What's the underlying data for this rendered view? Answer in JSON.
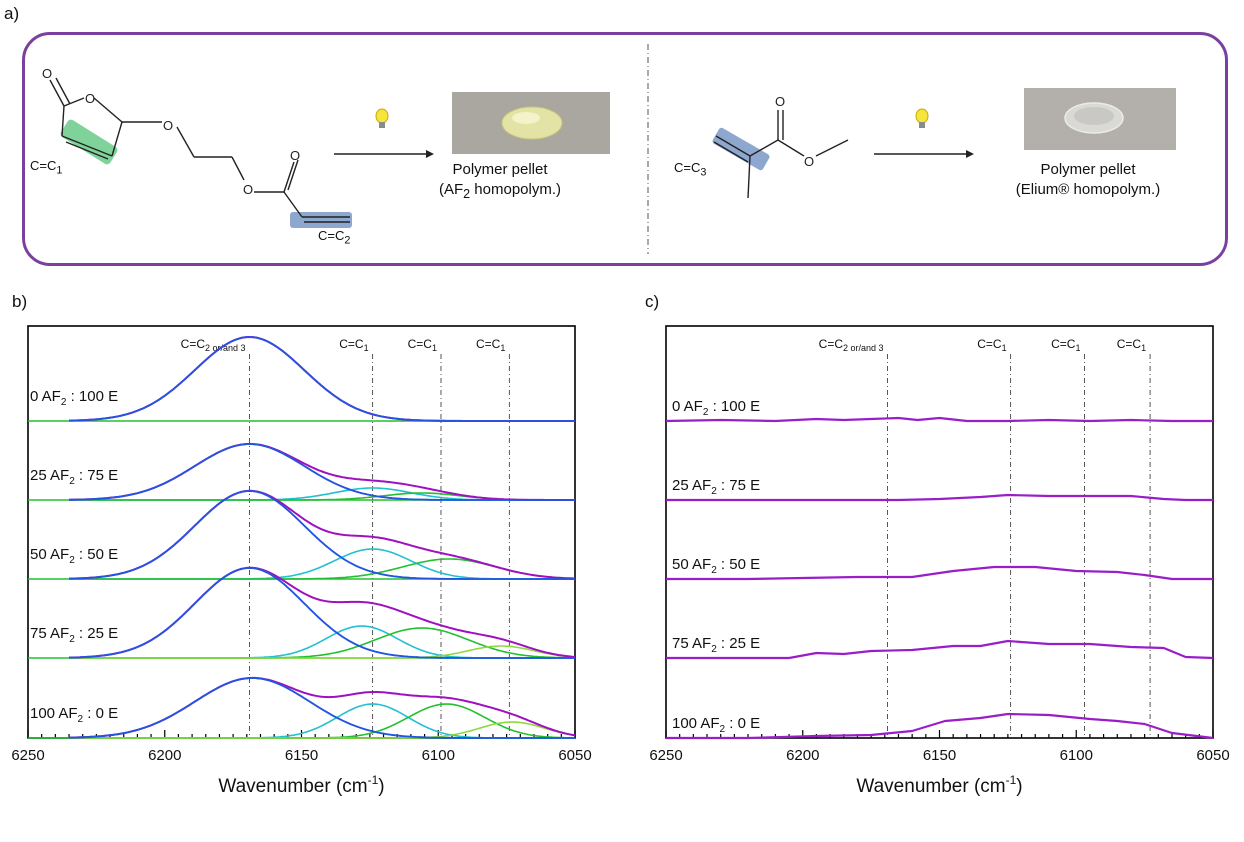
{
  "panel_labels": {
    "a": "a)",
    "b": "b)",
    "c": "c)"
  },
  "scheme": {
    "left": {
      "label_c1": "C=C",
      "label_c1_sub": "1",
      "label_c2": "C=C",
      "label_c2_sub": "2",
      "pellet_caption_line1": "Polymer pellet",
      "pellet_caption_line2_pre": "(AF",
      "pellet_caption_line2_sub": "2",
      "pellet_caption_line2_post": " homopolym.)",
      "highlight_c1_color": "#7fd39a",
      "highlight_c2_color": "#8ea7cf"
    },
    "right": {
      "label_c3": "C=C",
      "label_c3_sub": "3",
      "pellet_caption_line1": "Polymer pellet",
      "pellet_caption_line2": "(Elium® homopolym.)",
      "highlight_c3_color": "#8ea7cf"
    },
    "box_color": "#7b3fa0"
  },
  "chart_data": [
    {
      "type": "line",
      "panel": "b",
      "xlabel": "Wavenumber (cm-1)",
      "xlim": [
        6250,
        6050
      ],
      "xticks": [
        6250,
        6200,
        6150,
        6100,
        6050
      ],
      "reference_lines_x": [
        6169,
        6124,
        6099,
        6074
      ],
      "peak_labels": [
        {
          "text": "C=C",
          "sub": "2 or/and 3",
          "x": 6169
        },
        {
          "text": "C=C",
          "sub": "1",
          "x": 6124
        },
        {
          "text": "C=C",
          "sub": "1",
          "x": 6099
        },
        {
          "text": "C=C",
          "sub": "1",
          "x": 6074
        }
      ],
      "samples": [
        {
          "label_pre": "0 AF",
          "label_sub": "2",
          "label_post": " : 100 E",
          "peaks": [
            {
              "center": 6169,
              "height": 0.84,
              "width": 20,
              "color": "#2255e0"
            }
          ],
          "envelope_color": "#a010c0"
        },
        {
          "label_pre": "25 AF",
          "label_sub": "2",
          "label_post": " : 75 E",
          "peaks": [
            {
              "center": 6169,
              "height": 0.56,
              "width": 20,
              "color": "#2255e0"
            },
            {
              "center": 6124,
              "height": 0.12,
              "width": 14,
              "color": "#22c0d0"
            },
            {
              "center": 6106,
              "height": 0.07,
              "width": 14,
              "color": "#22c030"
            }
          ],
          "envelope_color": "#a010c0"
        },
        {
          "label_pre": "50 AF",
          "label_sub": "2",
          "label_post": " : 50 E",
          "peaks": [
            {
              "center": 6169,
              "height": 0.88,
              "width": 20,
              "color": "#2255e0"
            },
            {
              "center": 6124,
              "height": 0.3,
              "width": 14,
              "color": "#22c0d0"
            },
            {
              "center": 6096,
              "height": 0.2,
              "width": 17,
              "color": "#22c030"
            }
          ],
          "envelope_color": "#a010c0"
        },
        {
          "label_pre": "75 AF",
          "label_sub": "2",
          "label_post": " : 25 E",
          "peaks": [
            {
              "center": 6169,
              "height": 0.9,
              "width": 20,
              "color": "#2255e0"
            },
            {
              "center": 6128,
              "height": 0.32,
              "width": 13,
              "color": "#22c0d0"
            },
            {
              "center": 6106,
              "height": 0.3,
              "width": 17,
              "color": "#22c030"
            },
            {
              "center": 6077,
              "height": 0.12,
              "width": 12,
              "color": "#90d840"
            }
          ],
          "envelope_color": "#a010c0"
        },
        {
          "label_pre": "100 AF",
          "label_sub": "2",
          "label_post": " : 0 E",
          "peaks": [
            {
              "center": 6168,
              "height": 0.6,
              "width": 21,
              "color": "#2255e0"
            },
            {
              "center": 6124,
              "height": 0.34,
              "width": 13,
              "color": "#22c0d0"
            },
            {
              "center": 6097,
              "height": 0.34,
              "width": 14,
              "color": "#22c030"
            },
            {
              "center": 6073,
              "height": 0.16,
              "width": 12,
              "color": "#90d840"
            }
          ],
          "envelope_color": "#a010c0"
        }
      ]
    },
    {
      "type": "line",
      "panel": "c",
      "xlabel": "Wavenumber (cm-1)",
      "xlim": [
        6250,
        6050
      ],
      "xticks": [
        6250,
        6200,
        6150,
        6100,
        6050
      ],
      "reference_lines_x": [
        6169,
        6124,
        6097,
        6073
      ],
      "peak_labels": [
        {
          "text": "C=C",
          "sub": "2 or/and 3",
          "x": 6169
        },
        {
          "text": "C=C",
          "sub": "1",
          "x": 6124
        },
        {
          "text": "C=C",
          "sub": "1",
          "x": 6097
        },
        {
          "text": "C=C",
          "sub": "1",
          "x": 6073
        }
      ],
      "line_color": "#9a1ec8",
      "samples": [
        {
          "label_pre": "0 AF",
          "label_sub": "2",
          "label_post": " : 100 E",
          "x": [
            6250,
            6230,
            6210,
            6195,
            6185,
            6175,
            6165,
            6158,
            6150,
            6140,
            6125,
            6110,
            6095,
            6080,
            6065,
            6050
          ],
          "y": [
            0,
            0.01,
            0,
            0.02,
            0.01,
            0.02,
            0.03,
            0.01,
            0.03,
            0,
            0,
            0.01,
            0,
            0.01,
            0,
            0
          ]
        },
        {
          "label_pre": "25 AF",
          "label_sub": "2",
          "label_post": " : 75 E",
          "x": [
            6250,
            6220,
            6190,
            6165,
            6150,
            6135,
            6125,
            6110,
            6095,
            6080,
            6068,
            6060,
            6050
          ],
          "y": [
            0,
            0,
            0,
            0,
            0.01,
            0.03,
            0.05,
            0.04,
            0.04,
            0.04,
            0.01,
            0,
            0
          ]
        },
        {
          "label_pre": "50 AF",
          "label_sub": "2",
          "label_post": " : 50 E",
          "x": [
            6250,
            6220,
            6200,
            6180,
            6160,
            6145,
            6130,
            6115,
            6100,
            6085,
            6075,
            6065,
            6050
          ],
          "y": [
            0,
            0,
            0.01,
            0.02,
            0.02,
            0.08,
            0.12,
            0.12,
            0.08,
            0.07,
            0.04,
            0,
            0
          ]
        },
        {
          "label_pre": "75 AF",
          "label_sub": "2",
          "label_post": " : 25 E",
          "x": [
            6250,
            6220,
            6205,
            6195,
            6185,
            6175,
            6160,
            6145,
            6135,
            6125,
            6110,
            6095,
            6080,
            6068,
            6060,
            6050
          ],
          "y": [
            0,
            0,
            0,
            0.05,
            0.04,
            0.07,
            0.08,
            0.12,
            0.12,
            0.17,
            0.14,
            0.14,
            0.11,
            0.1,
            0.01,
            0
          ]
        },
        {
          "label_pre": "100 AF",
          "label_sub": "2",
          "label_post": " : 0 E",
          "x": [
            6250,
            6220,
            6195,
            6175,
            6160,
            6148,
            6135,
            6125,
            6110,
            6095,
            6085,
            6075,
            6065,
            6050
          ],
          "y": [
            0,
            0,
            0.02,
            0.03,
            0.07,
            0.17,
            0.2,
            0.24,
            0.23,
            0.19,
            0.17,
            0.14,
            0.05,
            0
          ]
        }
      ]
    }
  ]
}
